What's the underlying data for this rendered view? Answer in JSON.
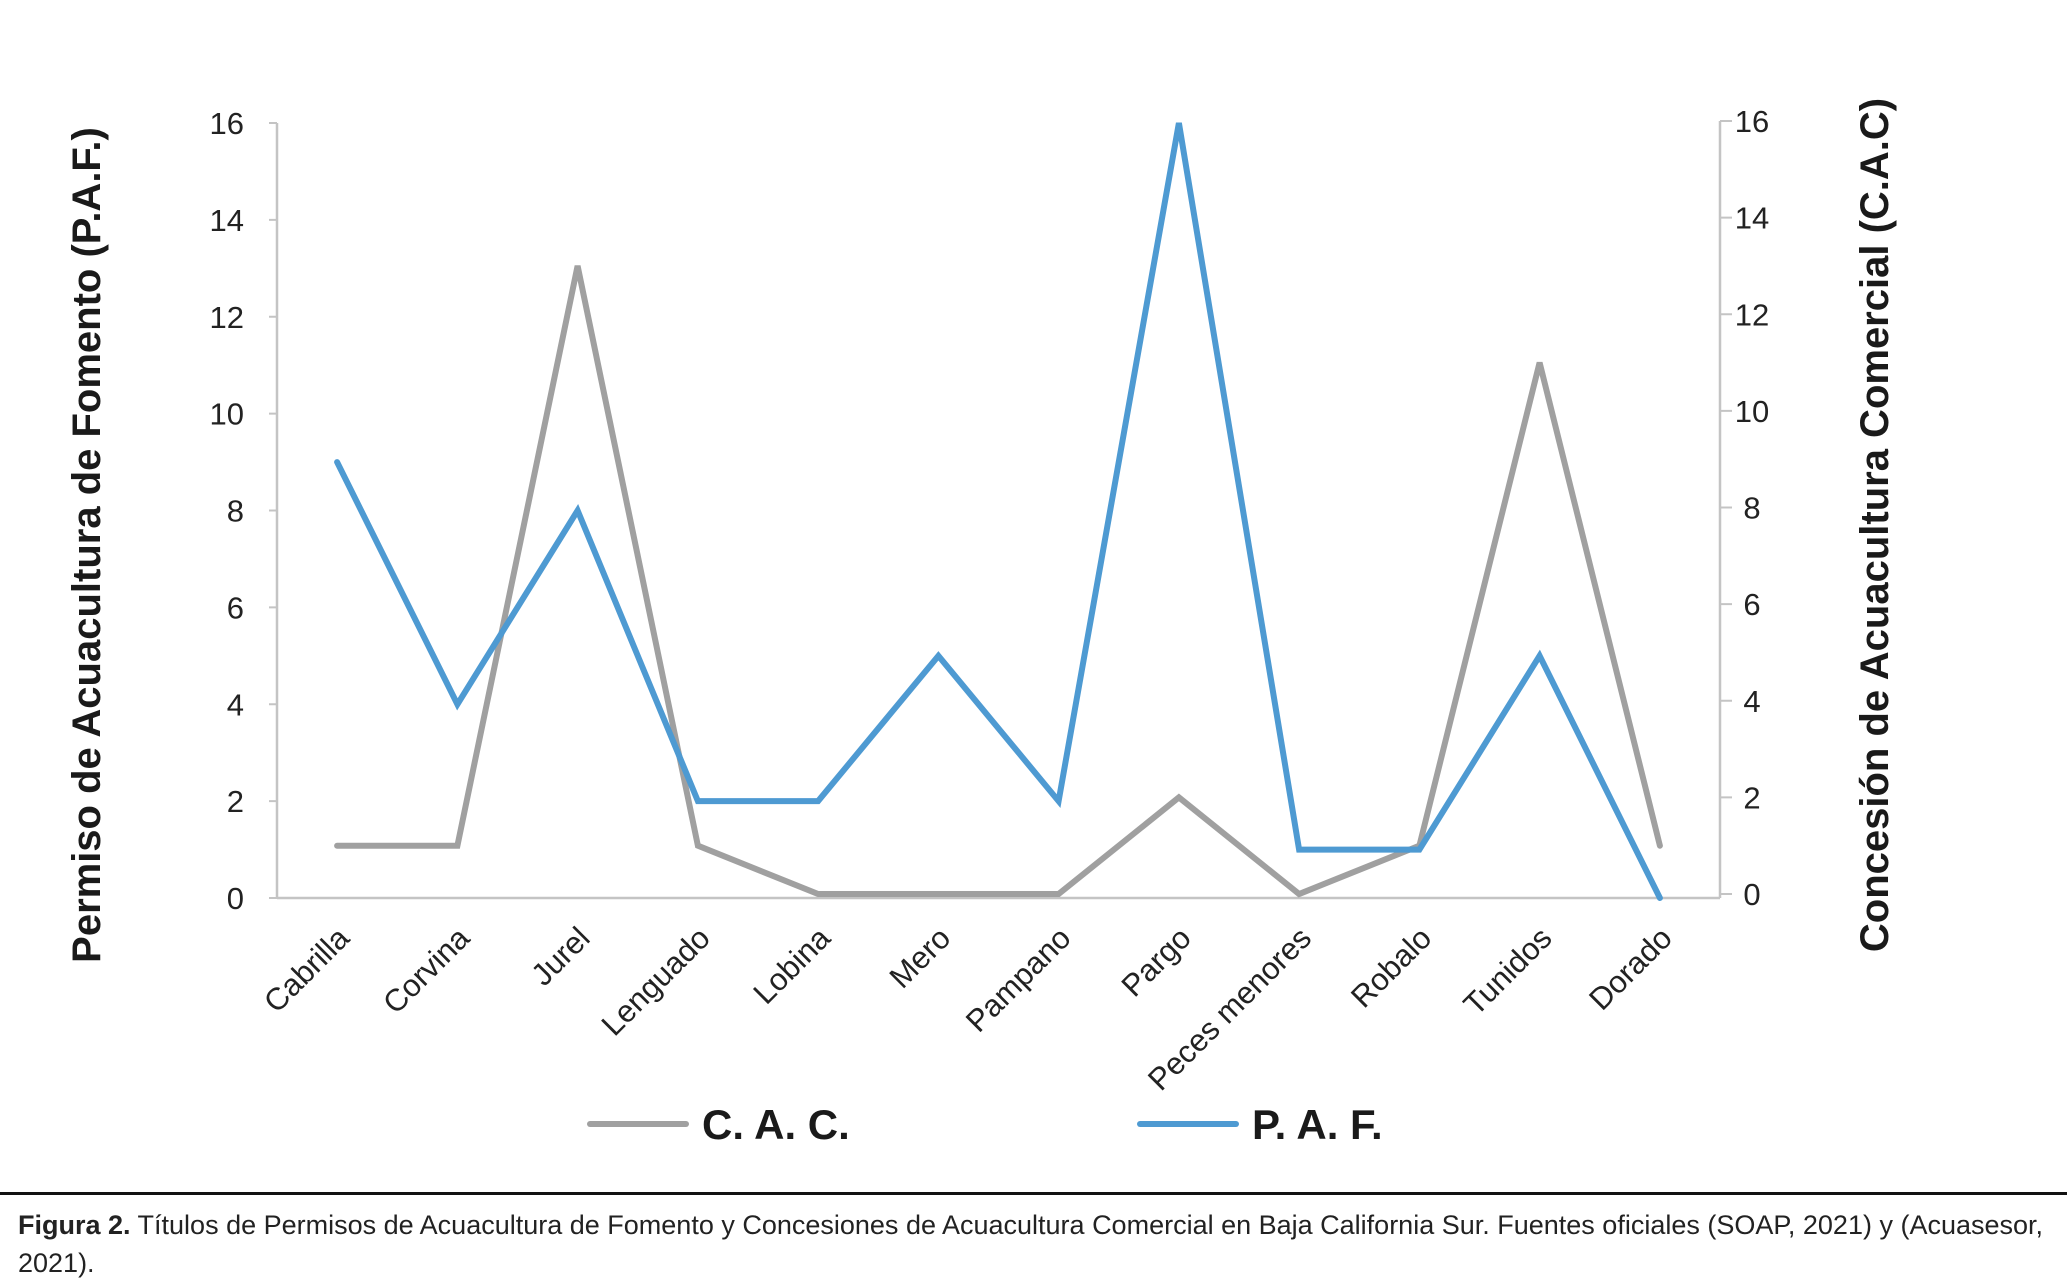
{
  "chart_data": {
    "type": "line",
    "categories": [
      "Cabrilla",
      "Corvina",
      "Jurel",
      "Lenguado",
      "Lobina",
      "Mero",
      "Pampano",
      "Pargo",
      "Peces menores",
      "Robalo",
      "Tunidos",
      "Dorado"
    ],
    "series": [
      {
        "name": "C. A. C.",
        "axis": "right",
        "color": "#a0a0a0",
        "values": [
          1,
          1,
          13,
          1,
          0,
          0,
          0,
          2,
          0,
          1,
          11,
          1
        ]
      },
      {
        "name": "P. A. F.",
        "axis": "left",
        "color": "#4e9ad2",
        "values": [
          9,
          4,
          8,
          2,
          2,
          5,
          2,
          16,
          1,
          1,
          5,
          0
        ]
      }
    ],
    "ylabel_left": "Permiso de Acuacultura de Fomento (P.A.F.)",
    "ylabel_right": "Concesión de Acuacultura Comercial (C.A.C)",
    "ylim_left": [
      0,
      16
    ],
    "ylim_right": [
      0,
      16
    ],
    "yticks": [
      "0",
      "2",
      "4",
      "6",
      "8",
      "10",
      "12",
      "14",
      "16"
    ],
    "grid": false,
    "legend_position": "bottom"
  },
  "caption": {
    "label": "Figura 2.",
    "text": " Títulos de Permisos de Acuacultura de Fomento y Concesiones de Acuacultura Comercial en Baja California Sur. Fuentes oficiales (SOAP, 2021) y (Acuasesor, 2021)."
  }
}
